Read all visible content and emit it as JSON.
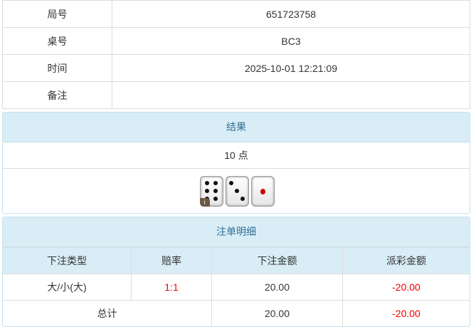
{
  "info": {
    "rows": [
      {
        "label": "局号",
        "value": "651723758"
      },
      {
        "label": "桌号",
        "value": "BC3"
      },
      {
        "label": "时间",
        "value": "2025-10-01 12:21:09"
      },
      {
        "label": "备注",
        "value": ""
      }
    ]
  },
  "result": {
    "title": "结果",
    "points": "10 点",
    "dice": [
      6,
      3,
      1
    ],
    "badge": "i"
  },
  "bets": {
    "title": "注单明细",
    "headers": [
      "下注类型",
      "赔率",
      "下注金额",
      "派彩金额"
    ],
    "rows": [
      {
        "type": "大/小(大)",
        "odds": "1:1",
        "amount": "20.00",
        "payout": "-20.00"
      }
    ],
    "total": {
      "label": "总计",
      "amount": "20.00",
      "payout": "-20.00"
    },
    "colors": {
      "negative": "#e00"
    }
  }
}
